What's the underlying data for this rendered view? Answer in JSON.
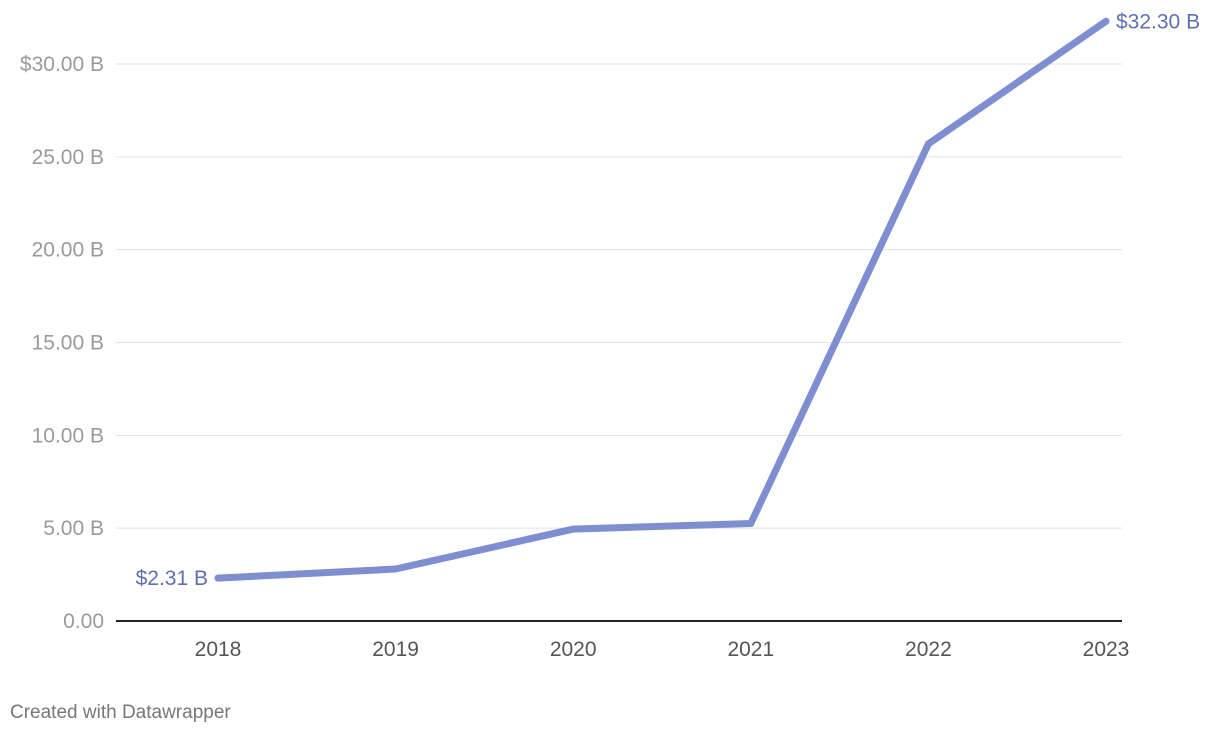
{
  "chart_data": {
    "type": "line",
    "x": [
      "2018",
      "2019",
      "2020",
      "2021",
      "2022",
      "2023"
    ],
    "series": [
      {
        "values": [
          2.31,
          2.8,
          4.95,
          5.25,
          25.7,
          32.3
        ],
        "color": "#7d8fd1"
      }
    ],
    "ylim": [
      0,
      30
    ],
    "y_ticks": [
      0,
      5,
      10,
      15,
      20,
      25,
      30
    ],
    "y_tick_labels": [
      "0.00",
      "5.00 B",
      "10.00 B",
      "15.00 B",
      "20.00 B",
      "25.00 B",
      "$30.00 B"
    ],
    "data_labels": {
      "first": "$2.31 B",
      "last": "$32.30 B"
    },
    "grid": true
  },
  "footer": {
    "credit": "Created with Datawrapper"
  }
}
